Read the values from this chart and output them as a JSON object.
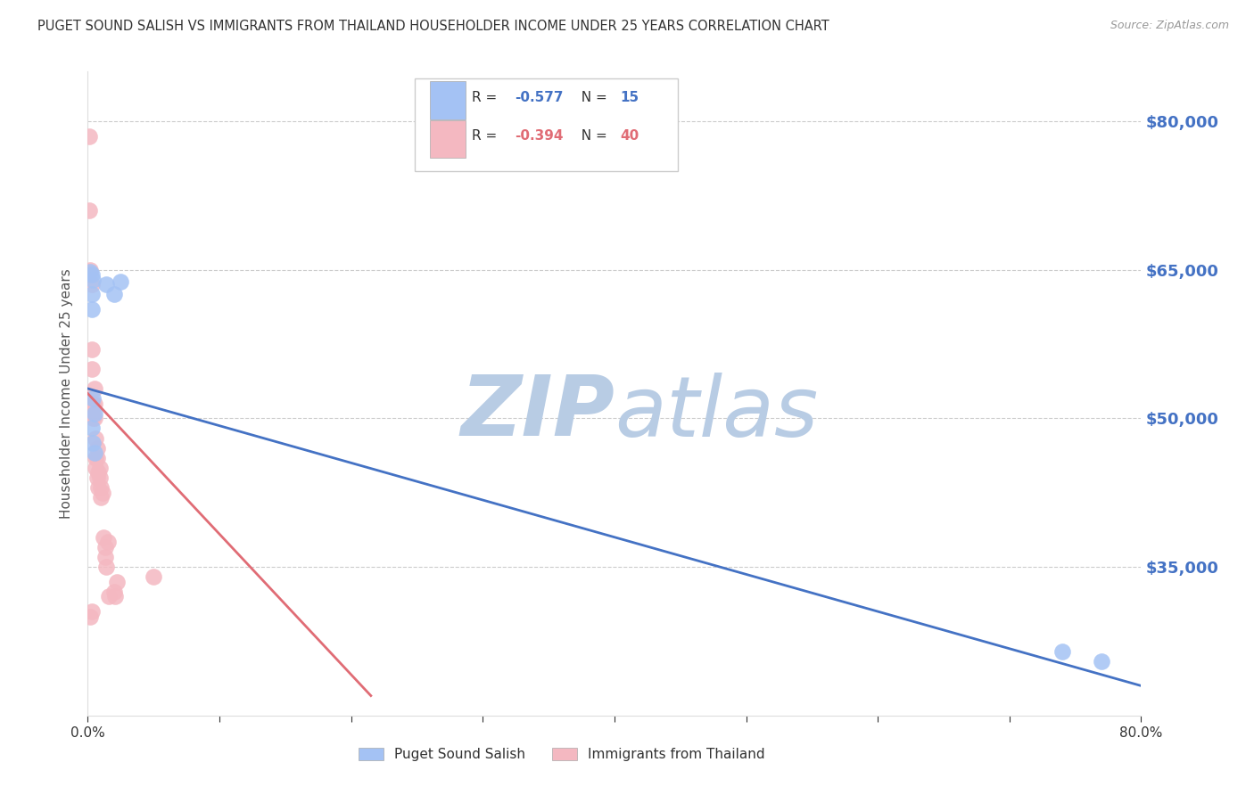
{
  "title": "PUGET SOUND SALISH VS IMMIGRANTS FROM THAILAND HOUSEHOLDER INCOME UNDER 25 YEARS CORRELATION CHART",
  "source": "Source: ZipAtlas.com",
  "ylabel": "Householder Income Under 25 years",
  "ytick_labels": [
    "$80,000",
    "$65,000",
    "$50,000",
    "$35,000"
  ],
  "ytick_values": [
    80000,
    65000,
    50000,
    35000
  ],
  "legend1_r": "-0.577",
  "legend1_n": "15",
  "legend2_r": "-0.394",
  "legend2_n": "40",
  "legend_label1": "Puget Sound Salish",
  "legend_label2": "Immigrants from Thailand",
  "blue_color": "#a4c2f4",
  "pink_color": "#f4b8c1",
  "blue_line_color": "#4472c4",
  "pink_line_color": "#e06c75",
  "watermark_zip": "ZIP",
  "watermark_atlas": "atlas",
  "blue_points_x": [
    0.002,
    0.003,
    0.004,
    0.003,
    0.004,
    0.005,
    0.003,
    0.004,
    0.005,
    0.014,
    0.02,
    0.025,
    0.74,
    0.77,
    0.003
  ],
  "blue_points_y": [
    64800,
    64500,
    64000,
    62500,
    52000,
    50500,
    49000,
    47500,
    46500,
    63500,
    62500,
    63800,
    26500,
    25500,
    61000
  ],
  "pink_points_x": [
    0.001,
    0.001,
    0.002,
    0.002,
    0.003,
    0.003,
    0.003,
    0.003,
    0.004,
    0.004,
    0.004,
    0.004,
    0.005,
    0.005,
    0.005,
    0.006,
    0.006,
    0.006,
    0.007,
    0.007,
    0.007,
    0.008,
    0.008,
    0.009,
    0.009,
    0.01,
    0.01,
    0.011,
    0.012,
    0.013,
    0.013,
    0.014,
    0.015,
    0.016,
    0.02,
    0.021,
    0.022,
    0.05,
    0.003,
    0.002
  ],
  "pink_points_y": [
    78500,
    71000,
    65000,
    64500,
    63500,
    57000,
    55000,
    51000,
    51500,
    51000,
    50500,
    50000,
    53000,
    51500,
    50000,
    48000,
    46000,
    45000,
    47000,
    46000,
    44000,
    44500,
    43000,
    45000,
    44000,
    43000,
    42000,
    42500,
    38000,
    37000,
    36000,
    35000,
    37500,
    32000,
    32500,
    32000,
    33500,
    34000,
    30500,
    30000
  ],
  "blue_trendline_x": [
    0.0,
    0.8
  ],
  "blue_trendline_y": [
    53000,
    23000
  ],
  "pink_trendline_x": [
    0.0,
    0.215
  ],
  "pink_trendline_y": [
    52500,
    22000
  ],
  "xmin": 0.0,
  "xmax": 0.8,
  "ymin": 20000,
  "ymax": 85000,
  "background_color": "#ffffff",
  "grid_color": "#cccccc",
  "title_color": "#333333",
  "axis_label_color": "#555555",
  "right_tick_color": "#4472c4",
  "watermark_color_zip": "#b8cce4",
  "watermark_color_atlas": "#b8cce4"
}
